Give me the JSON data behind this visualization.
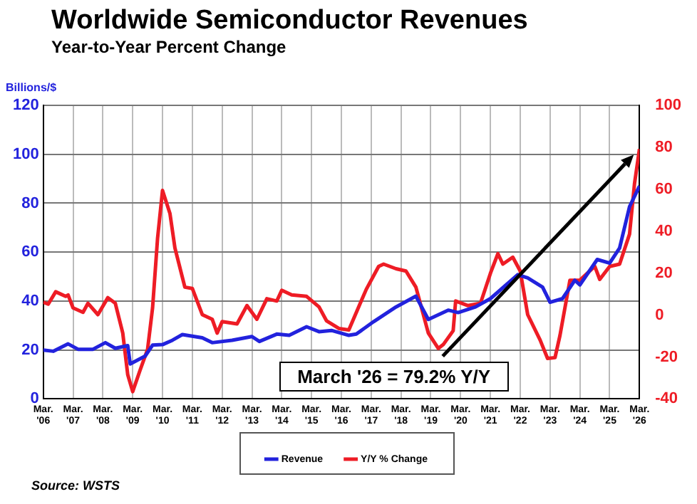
{
  "chart_data": {
    "type": "line",
    "title": "Worldwide Semiconductor Revenues",
    "subtitle": "Year-to-Year Percent Change",
    "ylabel": "Billions/$",
    "annotations": [
      "March '26 = 79.2% Y/Y",
      "Source: WSTS"
    ],
    "xlim": [
      "2006-03",
      "2026-03"
    ],
    "xticks": [
      {
        "value": "2006-03",
        "label": "Mar. '06"
      },
      {
        "value": "2007-03",
        "label": "Mar. '07"
      },
      {
        "value": "2008-03",
        "label": "Mar. '08"
      },
      {
        "value": "2009-03",
        "label": "Mar. '09"
      },
      {
        "value": "2010-03",
        "label": "Mar. '10"
      },
      {
        "value": "2011-03",
        "label": "Mar. '11"
      },
      {
        "value": "2012-03",
        "label": "Mar. '12"
      },
      {
        "value": "2013-03",
        "label": "Mar. '13"
      },
      {
        "value": "2014-03",
        "label": "Mar. '14"
      },
      {
        "value": "2015-03",
        "label": "Mar. '15"
      },
      {
        "value": "2016-03",
        "label": "Mar. '16"
      },
      {
        "value": "2017-03",
        "label": "Mar. '17"
      },
      {
        "value": "2018-03",
        "label": "Mar. '18"
      },
      {
        "value": "2019-03",
        "label": "Mar. '19"
      },
      {
        "value": "2020-03",
        "label": "Mar. '20"
      },
      {
        "value": "2021-03",
        "label": "Mar. '21"
      },
      {
        "value": "2022-03",
        "label": "Mar. '22"
      },
      {
        "value": "2023-03",
        "label": "Mar. '23"
      },
      {
        "value": "2024-03",
        "label": "Mar. '24"
      },
      {
        "value": "2025-03",
        "label": "Mar. '25"
      },
      {
        "value": "2026-03",
        "label": "Mar. '26"
      }
    ],
    "ylim": [
      0,
      120
    ],
    "yticks": [
      0,
      20,
      40,
      60,
      80,
      100,
      120
    ],
    "y2lim": [
      -40,
      100
    ],
    "y2ticks": [
      -40,
      -20,
      0,
      20,
      40,
      60,
      80,
      100
    ],
    "grid": true,
    "legend": "bottom",
    "marker": "none",
    "line_style": "solid",
    "series": [
      {
        "name": "Revenue",
        "color": "#2222dd",
        "x": [
          "2006-03",
          "2006-07",
          "2007-01",
          "2007-05",
          "2007-11",
          "2008-04",
          "2008-08",
          "2009-01",
          "2009-02",
          "2009-08",
          "2009-11",
          "2010-03",
          "2010-07",
          "2010-11",
          "2011-07",
          "2011-11",
          "2012-07",
          "2013-03",
          "2013-06",
          "2014-01",
          "2014-06",
          "2015-01",
          "2015-06",
          "2015-11",
          "2016-06",
          "2016-09",
          "2017-04",
          "2018-01",
          "2018-09",
          "2019-02",
          "2019-10",
          "2020-02",
          "2020-09",
          "2021-03",
          "2022-02",
          "2022-06",
          "2022-12",
          "2023-03",
          "2023-08",
          "2024-01",
          "2024-03",
          "2024-10",
          "2025-03",
          "2025-07",
          "2025-11",
          "2026-03"
        ],
        "values": [
          20,
          19.5,
          22.5,
          20.3,
          20.3,
          23,
          20.7,
          21.8,
          14.3,
          17.5,
          22,
          22.2,
          24,
          26.3,
          25,
          23,
          24,
          25.5,
          23.5,
          26.5,
          26,
          29.5,
          27.5,
          28,
          26,
          26.5,
          31.6,
          37.6,
          42,
          32.5,
          36.3,
          35.3,
          37.6,
          41,
          50.8,
          49.5,
          45.7,
          39.5,
          41,
          48.5,
          46.6,
          57,
          55.5,
          61.7,
          78.6,
          87
        ]
      },
      {
        "name": "Y/Y % Change",
        "color": "#ee1c25",
        "axis": "y2",
        "x": [
          "2006-03",
          "2006-05",
          "2006-08",
          "2006-12",
          "2007-01",
          "2007-03",
          "2007-07",
          "2007-09",
          "2008-01",
          "2008-05",
          "2008-08",
          "2008-11",
          "2009-01",
          "2009-03",
          "2009-06",
          "2009-09",
          "2009-11",
          "2010-01",
          "2010-03",
          "2010-06",
          "2010-08",
          "2010-12",
          "2011-03",
          "2011-07",
          "2011-11",
          "2012-01",
          "2012-03",
          "2012-09",
          "2013-01",
          "2013-05",
          "2013-09",
          "2014-01",
          "2014-03",
          "2014-07",
          "2015-01",
          "2015-06",
          "2015-09",
          "2016-02",
          "2016-06",
          "2016-11",
          "2017-01",
          "2017-06",
          "2017-08",
          "2018-01",
          "2018-05",
          "2018-09",
          "2019-02",
          "2019-06",
          "2019-08",
          "2019-12",
          "2020-01",
          "2020-06",
          "2020-11",
          "2021-03",
          "2021-06",
          "2021-08",
          "2021-12",
          "2022-03",
          "2022-06",
          "2022-11",
          "2023-02",
          "2023-05",
          "2023-07",
          "2023-11",
          "2024-03",
          "2024-06",
          "2024-09",
          "2024-11",
          "2025-03",
          "2025-07",
          "2025-11",
          "2026-01",
          "2026-03"
        ],
        "values": [
          6.1,
          5.2,
          11.1,
          8.9,
          9.6,
          3.4,
          1.3,
          5.6,
          0.2,
          8.3,
          5.6,
          -8.6,
          -28.4,
          -36.5,
          -26.2,
          -16.3,
          3.4,
          36.4,
          59.4,
          48.4,
          32,
          13.3,
          12.7,
          0.2,
          -2,
          -8.6,
          -3.1,
          -4.2,
          4.5,
          -2,
          7.8,
          6.7,
          11.8,
          9.6,
          8.9,
          3.9,
          -2.7,
          -6.4,
          -7.1,
          6.7,
          12.2,
          23.2,
          24.3,
          22.1,
          21,
          13.3,
          -8.6,
          -15.9,
          -14.1,
          -7.5,
          6.7,
          4.5,
          5.6,
          19.9,
          29.3,
          24.3,
          27.6,
          21,
          0.2,
          -11.9,
          -20.7,
          -20.3,
          -9.7,
          16.6,
          16.6,
          19.9,
          23.2,
          17,
          23.2,
          24.3,
          38.6,
          62.7,
          79.2
        ]
      }
    ]
  }
}
